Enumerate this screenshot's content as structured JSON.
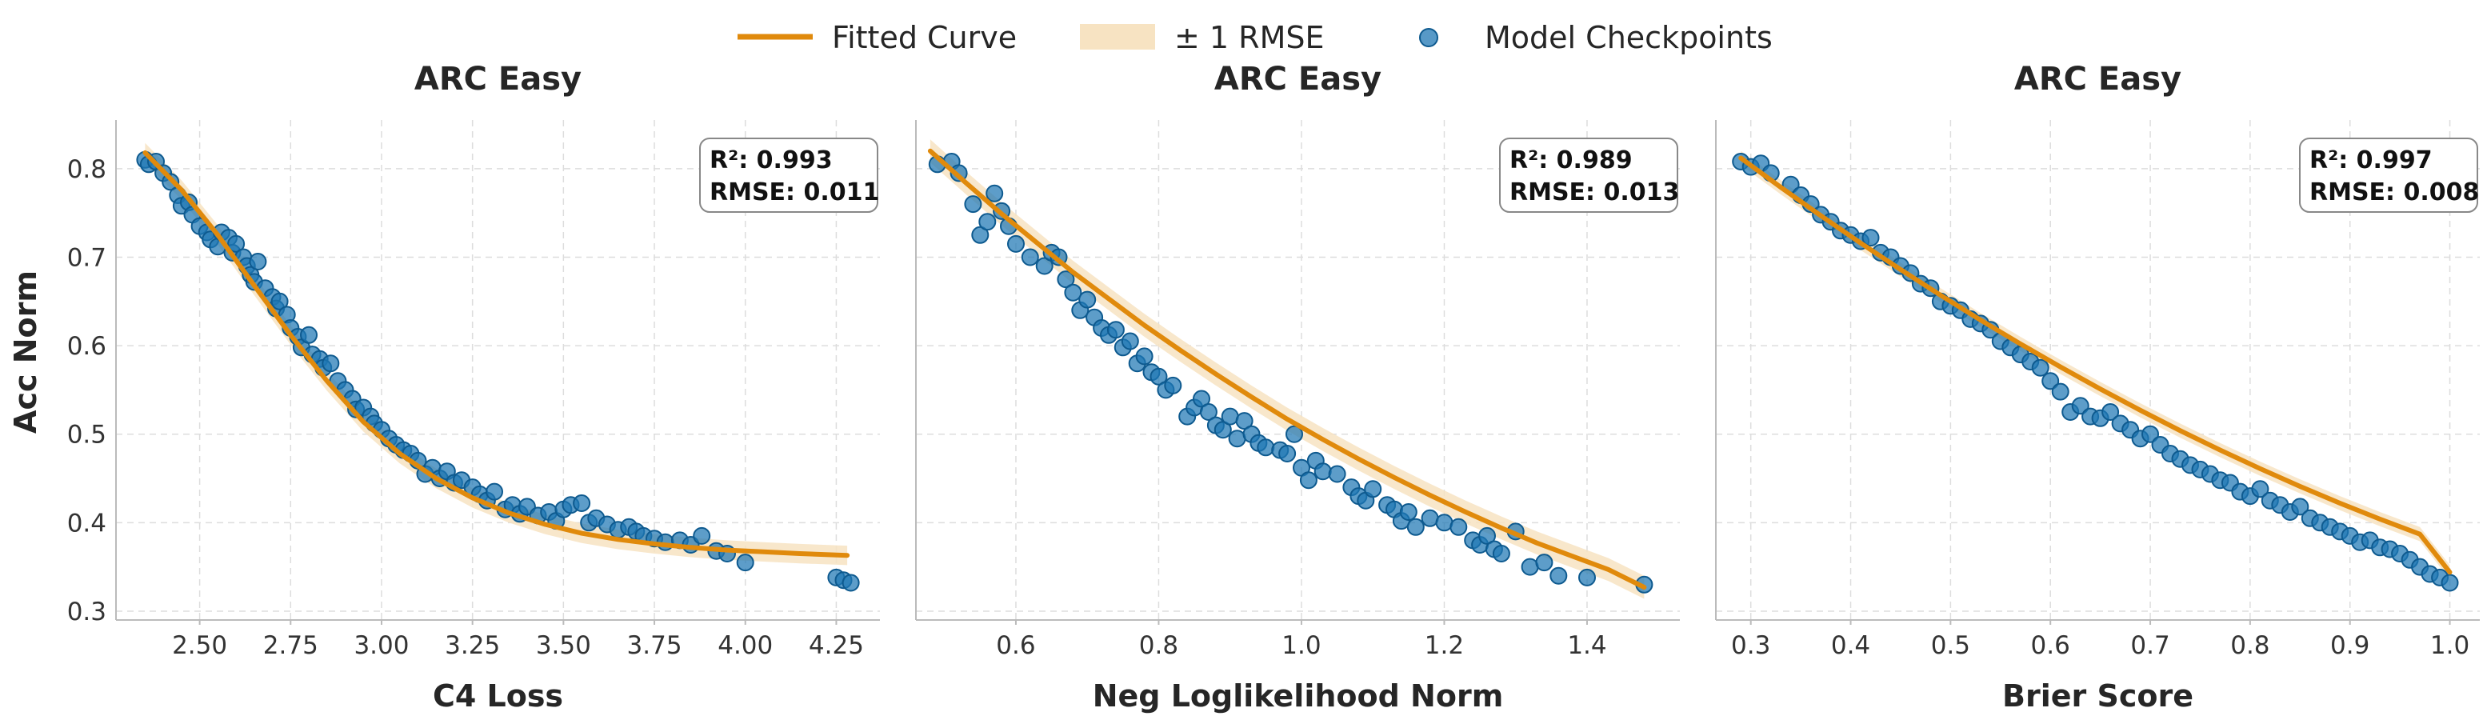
{
  "legend": {
    "entries": [
      {
        "label": "Fitted Curve",
        "kind": "line",
        "color": "#E08A0C"
      },
      {
        "label": "± 1 RMSE",
        "kind": "band",
        "color": "#F7E3C2"
      },
      {
        "label": "Model Checkpoints",
        "kind": "marker",
        "color": "#1F77B4"
      }
    ]
  },
  "figure": {
    "ylabel": "Acc Norm",
    "colors": {
      "curve": "#E08A0C",
      "band": "#F7E3C2",
      "points": "#1F77B4",
      "point_edge": "#0E5A8F",
      "grid": "#DDDDDD",
      "axis": "#BBBBBB"
    }
  },
  "chart_data": [
    {
      "type": "scatter",
      "title": "ARC Easy",
      "xlabel": "C4 Loss",
      "ylabel": "Acc Norm",
      "xlim": [
        2.27,
        4.37
      ],
      "ylim": [
        0.29,
        0.855
      ],
      "xticks": [
        2.5,
        2.75,
        3.0,
        3.25,
        3.5,
        3.75,
        4.0,
        4.25
      ],
      "xtick_labels": [
        "2.50",
        "2.75",
        "3.00",
        "3.25",
        "3.50",
        "3.75",
        "4.00",
        "4.25"
      ],
      "yticks": [
        0.3,
        0.4,
        0.5,
        0.6,
        0.7,
        0.8
      ],
      "ytick_labels": [
        "0.3",
        "0.4",
        "0.5",
        "0.6",
        "0.7",
        "0.8"
      ],
      "stats": {
        "r2": "R²: 0.993",
        "rmse": "RMSE: 0.011"
      },
      "fit": {
        "x": [
          2.35,
          2.45,
          2.55,
          2.65,
          2.75,
          2.85,
          2.95,
          3.05,
          3.15,
          3.25,
          3.35,
          3.45,
          3.55,
          3.65,
          3.75,
          3.85,
          3.95,
          4.05,
          4.15,
          4.28
        ],
        "y": [
          0.818,
          0.776,
          0.725,
          0.668,
          0.612,
          0.56,
          0.514,
          0.478,
          0.45,
          0.428,
          0.411,
          0.398,
          0.388,
          0.381,
          0.376,
          0.372,
          0.369,
          0.367,
          0.365,
          0.363
        ],
        "band": 0.011
      },
      "points": [
        [
          2.35,
          0.81
        ],
        [
          2.36,
          0.805
        ],
        [
          2.38,
          0.808
        ],
        [
          2.4,
          0.795
        ],
        [
          2.42,
          0.785
        ],
        [
          2.44,
          0.77
        ],
        [
          2.45,
          0.758
        ],
        [
          2.47,
          0.762
        ],
        [
          2.48,
          0.748
        ],
        [
          2.5,
          0.735
        ],
        [
          2.52,
          0.728
        ],
        [
          2.53,
          0.72
        ],
        [
          2.55,
          0.712
        ],
        [
          2.56,
          0.728
        ],
        [
          2.58,
          0.722
        ],
        [
          2.59,
          0.705
        ],
        [
          2.6,
          0.715
        ],
        [
          2.62,
          0.7
        ],
        [
          2.63,
          0.69
        ],
        [
          2.64,
          0.68
        ],
        [
          2.65,
          0.672
        ],
        [
          2.66,
          0.695
        ],
        [
          2.68,
          0.665
        ],
        [
          2.7,
          0.655
        ],
        [
          2.71,
          0.642
        ],
        [
          2.72,
          0.65
        ],
        [
          2.74,
          0.635
        ],
        [
          2.75,
          0.62
        ],
        [
          2.77,
          0.61
        ],
        [
          2.78,
          0.598
        ],
        [
          2.8,
          0.612
        ],
        [
          2.81,
          0.59
        ],
        [
          2.83,
          0.585
        ],
        [
          2.84,
          0.575
        ],
        [
          2.86,
          0.58
        ],
        [
          2.88,
          0.56
        ],
        [
          2.9,
          0.55
        ],
        [
          2.92,
          0.54
        ],
        [
          2.93,
          0.528
        ],
        [
          2.95,
          0.53
        ],
        [
          2.97,
          0.52
        ],
        [
          2.98,
          0.512
        ],
        [
          3.0,
          0.505
        ],
        [
          3.02,
          0.495
        ],
        [
          3.04,
          0.488
        ],
        [
          3.06,
          0.482
        ],
        [
          3.08,
          0.478
        ],
        [
          3.1,
          0.47
        ],
        [
          3.12,
          0.455
        ],
        [
          3.14,
          0.462
        ],
        [
          3.16,
          0.45
        ],
        [
          3.18,
          0.458
        ],
        [
          3.2,
          0.445
        ],
        [
          3.22,
          0.448
        ],
        [
          3.25,
          0.44
        ],
        [
          3.27,
          0.432
        ],
        [
          3.29,
          0.425
        ],
        [
          3.31,
          0.435
        ],
        [
          3.34,
          0.415
        ],
        [
          3.36,
          0.42
        ],
        [
          3.38,
          0.41
        ],
        [
          3.4,
          0.418
        ],
        [
          3.43,
          0.408
        ],
        [
          3.46,
          0.412
        ],
        [
          3.48,
          0.402
        ],
        [
          3.5,
          0.415
        ],
        [
          3.52,
          0.42
        ],
        [
          3.55,
          0.422
        ],
        [
          3.57,
          0.4
        ],
        [
          3.59,
          0.405
        ],
        [
          3.62,
          0.398
        ],
        [
          3.65,
          0.392
        ],
        [
          3.68,
          0.395
        ],
        [
          3.7,
          0.39
        ],
        [
          3.72,
          0.385
        ],
        [
          3.75,
          0.382
        ],
        [
          3.78,
          0.378
        ],
        [
          3.82,
          0.38
        ],
        [
          3.85,
          0.375
        ],
        [
          3.88,
          0.385
        ],
        [
          3.92,
          0.368
        ],
        [
          3.95,
          0.365
        ],
        [
          4.0,
          0.355
        ],
        [
          4.25,
          0.338
        ],
        [
          4.27,
          0.335
        ],
        [
          4.29,
          0.332
        ]
      ]
    },
    {
      "type": "scatter",
      "title": "ARC Easy",
      "xlabel": "Neg Loglikelihood Norm",
      "ylabel": "",
      "xlim": [
        0.46,
        1.53
      ],
      "ylim": [
        0.29,
        0.855
      ],
      "xticks": [
        0.6,
        0.8,
        1.0,
        1.2,
        1.4
      ],
      "xtick_labels": [
        "0.6",
        "0.8",
        "1.0",
        "1.2",
        "1.4"
      ],
      "yticks": [
        0.3,
        0.4,
        0.5,
        0.6,
        0.7,
        0.8
      ],
      "ytick_labels": [],
      "stats": {
        "r2": "R²: 0.989",
        "rmse": "RMSE: 0.013"
      },
      "fit": {
        "x": [
          0.48,
          0.53,
          0.58,
          0.63,
          0.68,
          0.73,
          0.78,
          0.83,
          0.88,
          0.93,
          0.98,
          1.03,
          1.08,
          1.13,
          1.18,
          1.23,
          1.28,
          1.33,
          1.38,
          1.43,
          1.48
        ],
        "y": [
          0.82,
          0.784,
          0.749,
          0.716,
          0.683,
          0.653,
          0.623,
          0.595,
          0.568,
          0.542,
          0.517,
          0.494,
          0.472,
          0.451,
          0.431,
          0.412,
          0.394,
          0.377,
          0.362,
          0.347,
          0.327
        ],
        "band": 0.013
      },
      "points": [
        [
          0.49,
          0.805
        ],
        [
          0.51,
          0.808
        ],
        [
          0.52,
          0.795
        ],
        [
          0.54,
          0.76
        ],
        [
          0.55,
          0.725
        ],
        [
          0.56,
          0.74
        ],
        [
          0.57,
          0.772
        ],
        [
          0.58,
          0.752
        ],
        [
          0.59,
          0.735
        ],
        [
          0.6,
          0.715
        ],
        [
          0.62,
          0.7
        ],
        [
          0.64,
          0.69
        ],
        [
          0.65,
          0.705
        ],
        [
          0.66,
          0.7
        ],
        [
          0.67,
          0.675
        ],
        [
          0.68,
          0.66
        ],
        [
          0.69,
          0.64
        ],
        [
          0.7,
          0.652
        ],
        [
          0.71,
          0.632
        ],
        [
          0.72,
          0.62
        ],
        [
          0.73,
          0.612
        ],
        [
          0.74,
          0.618
        ],
        [
          0.75,
          0.598
        ],
        [
          0.76,
          0.605
        ],
        [
          0.77,
          0.58
        ],
        [
          0.78,
          0.588
        ],
        [
          0.79,
          0.57
        ],
        [
          0.8,
          0.565
        ],
        [
          0.81,
          0.55
        ],
        [
          0.82,
          0.555
        ],
        [
          0.84,
          0.52
        ],
        [
          0.85,
          0.53
        ],
        [
          0.86,
          0.54
        ],
        [
          0.87,
          0.525
        ],
        [
          0.88,
          0.51
        ],
        [
          0.89,
          0.505
        ],
        [
          0.9,
          0.52
        ],
        [
          0.91,
          0.495
        ],
        [
          0.92,
          0.515
        ],
        [
          0.93,
          0.5
        ],
        [
          0.94,
          0.49
        ],
        [
          0.95,
          0.485
        ],
        [
          0.97,
          0.482
        ],
        [
          0.98,
          0.478
        ],
        [
          0.99,
          0.5
        ],
        [
          1.0,
          0.462
        ],
        [
          1.01,
          0.448
        ],
        [
          1.02,
          0.47
        ],
        [
          1.03,
          0.458
        ],
        [
          1.05,
          0.455
        ],
        [
          1.07,
          0.44
        ],
        [
          1.08,
          0.43
        ],
        [
          1.09,
          0.425
        ],
        [
          1.1,
          0.438
        ],
        [
          1.12,
          0.42
        ],
        [
          1.13,
          0.415
        ],
        [
          1.14,
          0.402
        ],
        [
          1.15,
          0.412
        ],
        [
          1.16,
          0.395
        ],
        [
          1.18,
          0.405
        ],
        [
          1.2,
          0.4
        ],
        [
          1.22,
          0.395
        ],
        [
          1.24,
          0.38
        ],
        [
          1.25,
          0.375
        ],
        [
          1.26,
          0.385
        ],
        [
          1.27,
          0.37
        ],
        [
          1.28,
          0.365
        ],
        [
          1.3,
          0.39
        ],
        [
          1.32,
          0.35
        ],
        [
          1.34,
          0.355
        ],
        [
          1.36,
          0.34
        ],
        [
          1.4,
          0.338
        ],
        [
          1.48,
          0.33
        ]
      ]
    },
    {
      "type": "scatter",
      "title": "ARC Easy",
      "xlabel": "Brier Score",
      "ylabel": "",
      "xlim": [
        0.265,
        1.03
      ],
      "ylim": [
        0.29,
        0.855
      ],
      "xticks": [
        0.3,
        0.4,
        0.5,
        0.6,
        0.7,
        0.8,
        0.9,
        1.0
      ],
      "xtick_labels": [
        "0.3",
        "0.4",
        "0.5",
        "0.6",
        "0.7",
        "0.8",
        "0.9",
        "1.0"
      ],
      "yticks": [
        0.3,
        0.4,
        0.5,
        0.6,
        0.7,
        0.8
      ],
      "ytick_labels": [],
      "stats": {
        "r2": "R²: 0.997",
        "rmse": "RMSE: 0.008"
      },
      "fit": {
        "x": [
          0.29,
          0.33,
          0.37,
          0.41,
          0.45,
          0.49,
          0.53,
          0.57,
          0.61,
          0.65,
          0.69,
          0.73,
          0.77,
          0.81,
          0.85,
          0.89,
          0.93,
          0.97,
          1.0
        ],
        "y": [
          0.812,
          0.779,
          0.747,
          0.716,
          0.686,
          0.657,
          0.629,
          0.602,
          0.576,
          0.551,
          0.527,
          0.504,
          0.482,
          0.461,
          0.441,
          0.422,
          0.404,
          0.387,
          0.344
        ],
        "band": 0.008
      },
      "points": [
        [
          0.29,
          0.808
        ],
        [
          0.3,
          0.802
        ],
        [
          0.31,
          0.806
        ],
        [
          0.32,
          0.795
        ],
        [
          0.34,
          0.782
        ],
        [
          0.35,
          0.77
        ],
        [
          0.36,
          0.76
        ],
        [
          0.37,
          0.748
        ],
        [
          0.38,
          0.74
        ],
        [
          0.39,
          0.73
        ],
        [
          0.4,
          0.725
        ],
        [
          0.41,
          0.718
        ],
        [
          0.42,
          0.722
        ],
        [
          0.43,
          0.705
        ],
        [
          0.44,
          0.7
        ],
        [
          0.45,
          0.69
        ],
        [
          0.46,
          0.682
        ],
        [
          0.47,
          0.67
        ],
        [
          0.48,
          0.665
        ],
        [
          0.49,
          0.65
        ],
        [
          0.5,
          0.645
        ],
        [
          0.51,
          0.64
        ],
        [
          0.52,
          0.63
        ],
        [
          0.53,
          0.625
        ],
        [
          0.54,
          0.618
        ],
        [
          0.55,
          0.605
        ],
        [
          0.56,
          0.598
        ],
        [
          0.57,
          0.59
        ],
        [
          0.58,
          0.582
        ],
        [
          0.59,
          0.575
        ],
        [
          0.6,
          0.56
        ],
        [
          0.61,
          0.548
        ],
        [
          0.62,
          0.525
        ],
        [
          0.63,
          0.532
        ],
        [
          0.64,
          0.52
        ],
        [
          0.65,
          0.518
        ],
        [
          0.66,
          0.525
        ],
        [
          0.67,
          0.512
        ],
        [
          0.68,
          0.505
        ],
        [
          0.69,
          0.495
        ],
        [
          0.7,
          0.5
        ],
        [
          0.71,
          0.488
        ],
        [
          0.72,
          0.478
        ],
        [
          0.73,
          0.472
        ],
        [
          0.74,
          0.465
        ],
        [
          0.75,
          0.46
        ],
        [
          0.76,
          0.455
        ],
        [
          0.77,
          0.448
        ],
        [
          0.78,
          0.445
        ],
        [
          0.79,
          0.435
        ],
        [
          0.8,
          0.43
        ],
        [
          0.81,
          0.438
        ],
        [
          0.82,
          0.425
        ],
        [
          0.83,
          0.42
        ],
        [
          0.84,
          0.412
        ],
        [
          0.85,
          0.418
        ],
        [
          0.86,
          0.405
        ],
        [
          0.87,
          0.4
        ],
        [
          0.88,
          0.395
        ],
        [
          0.89,
          0.39
        ],
        [
          0.9,
          0.385
        ],
        [
          0.91,
          0.378
        ],
        [
          0.92,
          0.38
        ],
        [
          0.93,
          0.372
        ],
        [
          0.94,
          0.37
        ],
        [
          0.95,
          0.365
        ],
        [
          0.96,
          0.358
        ],
        [
          0.97,
          0.35
        ],
        [
          0.98,
          0.342
        ],
        [
          0.99,
          0.338
        ],
        [
          1.0,
          0.332
        ]
      ]
    }
  ]
}
